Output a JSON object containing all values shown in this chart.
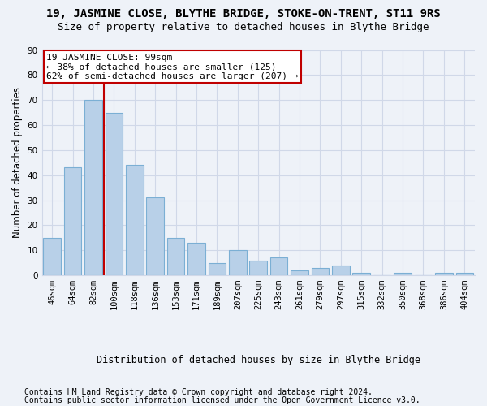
{
  "title": "19, JASMINE CLOSE, BLYTHE BRIDGE, STOKE-ON-TRENT, ST11 9RS",
  "subtitle": "Size of property relative to detached houses in Blythe Bridge",
  "xlabel": "Distribution of detached houses by size in Blythe Bridge",
  "ylabel": "Number of detached properties",
  "footer_line1": "Contains HM Land Registry data © Crown copyright and database right 2024.",
  "footer_line2": "Contains public sector information licensed under the Open Government Licence v3.0.",
  "annotation_line1": "19 JASMINE CLOSE: 99sqm",
  "annotation_line2": "← 38% of detached houses are smaller (125)",
  "annotation_line3": "62% of semi-detached houses are larger (207) →",
  "categories": [
    "46sqm",
    "64sqm",
    "82sqm",
    "100sqm",
    "118sqm",
    "136sqm",
    "153sqm",
    "171sqm",
    "189sqm",
    "207sqm",
    "225sqm",
    "243sqm",
    "261sqm",
    "279sqm",
    "297sqm",
    "315sqm",
    "332sqm",
    "350sqm",
    "368sqm",
    "386sqm",
    "404sqm"
  ],
  "values": [
    15,
    43,
    70,
    65,
    44,
    31,
    15,
    13,
    5,
    10,
    6,
    7,
    2,
    3,
    4,
    1,
    0,
    1,
    0,
    1,
    1
  ],
  "bar_color": "#b8d0e8",
  "bar_edge_color": "#7bafd4",
  "vline_x": 2.5,
  "vline_color": "#c00000",
  "annotation_box_edge_color": "#c00000",
  "ylim": [
    0,
    90
  ],
  "yticks": [
    0,
    10,
    20,
    30,
    40,
    50,
    60,
    70,
    80,
    90
  ],
  "grid_color": "#d0d8e8",
  "background_color": "#eef2f8",
  "title_fontsize": 10,
  "subtitle_fontsize": 9,
  "axis_label_fontsize": 8.5,
  "tick_fontsize": 7.5,
  "annotation_fontsize": 8,
  "footer_fontsize": 7
}
